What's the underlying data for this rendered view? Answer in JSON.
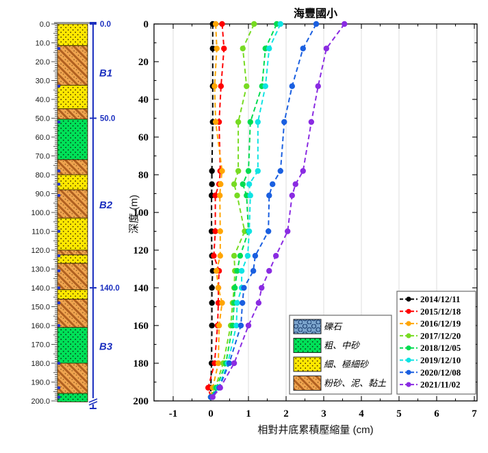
{
  "figure": {
    "title": "海豐國小",
    "xlabel": "相對井底累積壓縮量  (cm)",
    "ylabel": "深度 (m)",
    "x_ticks": [
      -1,
      0,
      1,
      2,
      3,
      4,
      5,
      6,
      7
    ],
    "y_ticks": [
      0,
      20,
      40,
      60,
      80,
      100,
      120,
      140,
      160,
      180,
      200
    ],
    "xlim": [
      -1.5,
      7.1
    ],
    "ylim": [
      0,
      200
    ],
    "grid": "vertical-only"
  },
  "chart_data": {
    "type": "line",
    "style": "dashed-with-circle-markers",
    "note": "depth profile: x = cumulative compression relative to well bottom (cm), y = depth (m), depth axis reversed",
    "x_depths_m": [
      0,
      13,
      33,
      52,
      78,
      85,
      91,
      110,
      123,
      131,
      140,
      148,
      160,
      180,
      193,
      198
    ],
    "series": [
      {
        "name": "2014/12/11",
        "color": "#000000",
        "values": [
          0.05,
          0.05,
          0.05,
          0.05,
          0.03,
          0.03,
          0.02,
          0.02,
          0.03,
          0.05,
          0.03,
          0.03,
          0.03,
          0.02,
          0.0,
          0.0
        ]
      },
      {
        "name": "2015/12/18",
        "color": "#ff0000",
        "values": [
          0.3,
          0.35,
          0.27,
          0.22,
          0.25,
          0.22,
          0.12,
          0.12,
          0.08,
          0.22,
          0.2,
          0.2,
          0.18,
          0.1,
          -0.07,
          0.0
        ]
      },
      {
        "name": "2016/12/19",
        "color": "#ffa500",
        "values": [
          0.13,
          0.16,
          0.1,
          0.13,
          0.3,
          0.26,
          0.24,
          0.25,
          0.25,
          0.15,
          0.2,
          0.3,
          0.22,
          0.2,
          0.05,
          0.0
        ]
      },
      {
        "name": "2017/12/20",
        "color": "#77db22",
        "values": [
          1.15,
          0.85,
          0.95,
          0.73,
          0.73,
          0.62,
          0.7,
          0.9,
          0.62,
          0.64,
          0.62,
          0.58,
          0.53,
          0.33,
          0.12,
          0.0
        ]
      },
      {
        "name": "2018/12/05",
        "color": "#00dc50",
        "values": [
          1.75,
          1.45,
          1.36,
          1.05,
          1.0,
          0.85,
          0.95,
          1.0,
          0.78,
          0.7,
          0.64,
          0.62,
          0.58,
          0.4,
          0.15,
          0.0
        ]
      },
      {
        "name": "2019/12/10",
        "color": "#0fe3e3",
        "values": [
          1.85,
          1.55,
          1.45,
          1.25,
          1.25,
          1.02,
          1.05,
          1.02,
          0.98,
          0.82,
          0.82,
          0.7,
          0.68,
          0.45,
          0.2,
          0.0
        ]
      },
      {
        "name": "2020/12/08",
        "color": "#1a5fe0",
        "values": [
          2.8,
          2.45,
          2.16,
          1.95,
          1.85,
          1.64,
          1.55,
          1.53,
          1.18,
          1.13,
          0.88,
          0.84,
          0.8,
          0.49,
          0.22,
          0.0
        ]
      },
      {
        "name": "2021/11/02",
        "color": "#8a2be2",
        "values": [
          3.55,
          3.07,
          2.85,
          2.67,
          2.45,
          2.25,
          2.16,
          2.04,
          1.73,
          1.55,
          1.35,
          1.27,
          1.0,
          0.62,
          0.25,
          0.05
        ]
      }
    ]
  },
  "strat_column": {
    "depth_labels": [
      "0.0",
      "10.0",
      "20.0",
      "30.0",
      "40.0",
      "50.0",
      "60.0",
      "70.0",
      "80.0",
      "90.0",
      "100.0",
      "110.0",
      "120.0",
      "130.0",
      "140.0",
      "150.0",
      "160.0",
      "170.0",
      "180.0",
      "190.0",
      "200.0"
    ],
    "layers": [
      {
        "from": 0,
        "to": 11.5,
        "type": "fine_sand"
      },
      {
        "from": 11.5,
        "to": 32.5,
        "type": "clay_silt"
      },
      {
        "from": 32.5,
        "to": 45,
        "type": "fine_sand"
      },
      {
        "from": 45,
        "to": 50.5,
        "type": "clay_silt"
      },
      {
        "from": 50.5,
        "to": 72,
        "type": "coarse_sand"
      },
      {
        "from": 72,
        "to": 80,
        "type": "clay_silt"
      },
      {
        "from": 80,
        "to": 88,
        "type": "fine_sand"
      },
      {
        "from": 88,
        "to": 103,
        "type": "clay_silt"
      },
      {
        "from": 103,
        "to": 120,
        "type": "fine_sand"
      },
      {
        "from": 120,
        "to": 122.5,
        "type": "clay_silt"
      },
      {
        "from": 122.5,
        "to": 127,
        "type": "fine_sand"
      },
      {
        "from": 127,
        "to": 141,
        "type": "clay_silt"
      },
      {
        "from": 141,
        "to": 146,
        "type": "fine_sand"
      },
      {
        "from": 146,
        "to": 161,
        "type": "clay_silt"
      },
      {
        "from": 161,
        "to": 180,
        "type": "coarse_sand"
      },
      {
        "from": 180,
        "to": 196,
        "type": "clay_silt"
      },
      {
        "from": 196,
        "to": 200.5,
        "type": "coarse_sand"
      }
    ],
    "ring_marker_depths": [
      13,
      33,
      52,
      78,
      85,
      91,
      110,
      123,
      131,
      140,
      148,
      160,
      180,
      193,
      198
    ],
    "zone_tick_labels": [
      {
        "label": "0.0",
        "depth": 0
      },
      {
        "label": "50.0",
        "depth": 50
      },
      {
        "label": "140.0",
        "depth": 140
      }
    ],
    "zones": [
      {
        "label": "B1",
        "from": 0,
        "to": 50,
        "label_depth": 26
      },
      {
        "label": "B2",
        "from": 50,
        "to": 140,
        "label_depth": 96
      },
      {
        "label": "B3",
        "from": 140,
        "to": 200,
        "label_depth": 171
      }
    ],
    "accent_color": "#1b2fbf"
  },
  "lithology_legend": [
    {
      "label": "礫石",
      "type": "gravel",
      "color": "#7ba4cc"
    },
    {
      "label": "粗、中砂",
      "type": "coarse_sand",
      "color": "#00e158"
    },
    {
      "label": "細、極細砂",
      "type": "fine_sand",
      "color": "#ffe800"
    },
    {
      "label": "粉砂、泥、黏土",
      "type": "clay_silt",
      "color": "#efa44f"
    }
  ]
}
